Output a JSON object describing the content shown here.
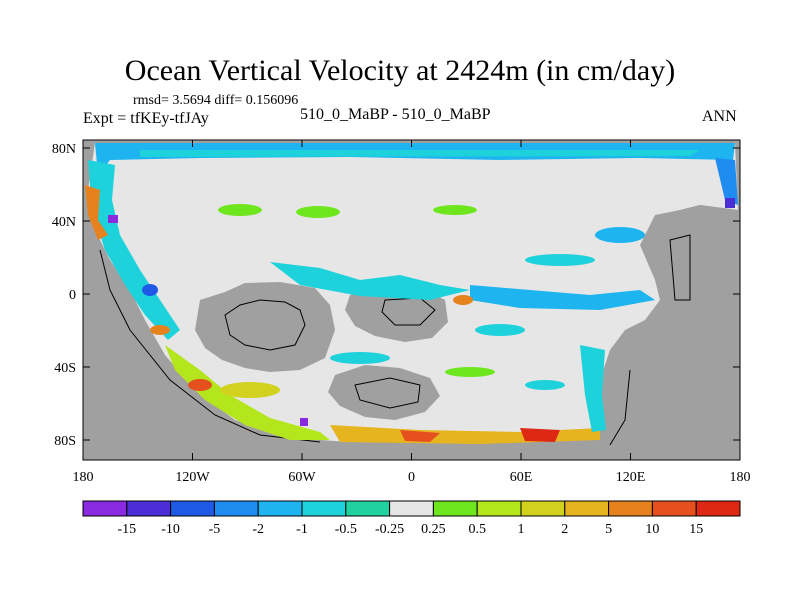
{
  "title": "Ocean Vertical Velocity at 2424m (in cm/day)",
  "stats": "rmsd= 3.5694  diff= 0.156096",
  "expt": "Expt = tfKEy-tfJAy",
  "case_label": "510_0_MaBP - 510_0_MaBP",
  "season": "ANN",
  "lat_ticks": [
    "80N",
    "40N",
    "0",
    "40S",
    "80S"
  ],
  "lon_ticks": [
    "180",
    "120W",
    "60W",
    "0",
    "60E",
    "120E",
    "180"
  ],
  "colorbar": {
    "labels": [
      "-15",
      "-10",
      "-5",
      "-2",
      "-1",
      "-0.5",
      "-0.25",
      "0.25",
      "0.5",
      "1",
      "2",
      "5",
      "10",
      "15"
    ],
    "colors": [
      "#8a2be2",
      "#4b2ed6",
      "#1e5ae6",
      "#1e8cf0",
      "#1eb4f0",
      "#1ed2dc",
      "#20d2a0",
      "#e6e6e6",
      "#6ee61e",
      "#b4e61e",
      "#d2d21e",
      "#e6b41e",
      "#e6821e",
      "#e6501e",
      "#dc2814"
    ]
  },
  "land_color": "#a0a0a0",
  "ocean_color": "#e6e6e6"
}
